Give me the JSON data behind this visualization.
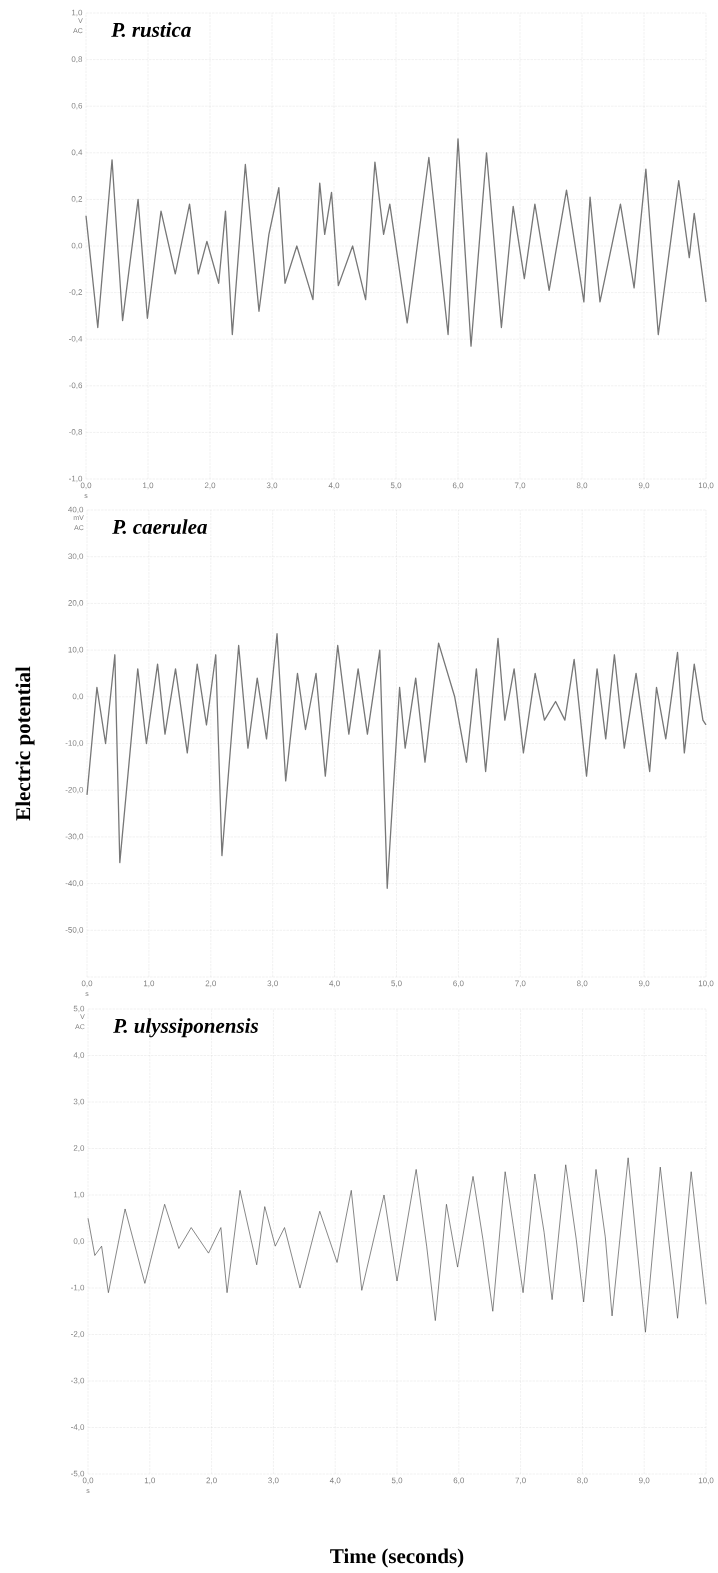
{
  "chart_data": [
    {
      "type": "line",
      "title": "P. rustica",
      "annotations": [
        "V",
        "AC",
        "s"
      ],
      "grid": true,
      "xlim": [
        0,
        10
      ],
      "ylim": [
        -1,
        1
      ],
      "xticks": [
        {
          "value": 0,
          "label": "0,0"
        },
        {
          "value": 1,
          "label": "1,0"
        },
        {
          "value": 2,
          "label": "2,0"
        },
        {
          "value": 3,
          "label": "3,0"
        },
        {
          "value": 4,
          "label": "4,0"
        },
        {
          "value": 5,
          "label": "5,0"
        },
        {
          "value": 6,
          "label": "6,0"
        },
        {
          "value": 7,
          "label": "7,0"
        },
        {
          "value": 8,
          "label": "8,0"
        },
        {
          "value": 9,
          "label": "9,0"
        },
        {
          "value": 10,
          "label": "10,0"
        }
      ],
      "yticks": [
        {
          "value": -1,
          "label": "-1,0"
        },
        {
          "value": -0.8,
          "label": "-0,8"
        },
        {
          "value": -0.6,
          "label": "-0,6"
        },
        {
          "value": -0.4,
          "label": "-0,4"
        },
        {
          "value": -0.2,
          "label": "-0,2"
        },
        {
          "value": 0,
          "label": "0,0"
        },
        {
          "value": 0.2,
          "label": "0,2"
        },
        {
          "value": 0.4,
          "label": "0,4"
        },
        {
          "value": 0.6,
          "label": "0,6"
        },
        {
          "value": 0.8,
          "label": "0,8"
        },
        {
          "value": 1,
          "label": "1,0"
        }
      ],
      "x": [
        0,
        0.19,
        0.42,
        0.59,
        0.84,
        0.99,
        1.21,
        1.44,
        1.67,
        1.81,
        1.95,
        2.14,
        2.25,
        2.36,
        2.57,
        2.79,
        2.95,
        3.11,
        3.21,
        3.4,
        3.66,
        3.77,
        3.85,
        3.96,
        4.07,
        4.3,
        4.51,
        4.66,
        4.8,
        4.9,
        5.18,
        5.53,
        5.84,
        6.0,
        6.21,
        6.46,
        6.7,
        6.89,
        7.07,
        7.24,
        7.47,
        7.75,
        8.03,
        8.13,
        8.29,
        8.62,
        8.84,
        9.03,
        9.23,
        9.56,
        9.73,
        9.81,
        10.0
      ],
      "series": [
        {
          "color": "#777777",
          "values": [
            0.13,
            -0.35,
            0.37,
            -0.32,
            0.2,
            -0.31,
            0.15,
            -0.12,
            0.18,
            -0.12,
            0.02,
            -0.16,
            0.15,
            -0.38,
            0.35,
            -0.28,
            0.05,
            0.25,
            -0.16,
            0.0,
            -0.23,
            0.27,
            0.05,
            0.23,
            -0.17,
            0.0,
            -0.23,
            0.36,
            0.05,
            0.18,
            -0.33,
            0.38,
            -0.38,
            0.46,
            -0.43,
            0.4,
            -0.35,
            0.17,
            -0.14,
            0.18,
            -0.19,
            0.24,
            -0.24,
            0.21,
            -0.24,
            0.18,
            -0.18,
            0.33,
            -0.38,
            0.28,
            -0.05,
            0.14,
            -0.24
          ]
        }
      ]
    },
    {
      "type": "line",
      "title": "P. caerulea",
      "ylabel": "Electric potential",
      "annotations": [
        "mV",
        "AC",
        "s"
      ],
      "grid": true,
      "xlim": [
        0,
        10
      ],
      "ylim": [
        -60,
        40
      ],
      "xticks": [
        {
          "value": 0,
          "label": "0,0"
        },
        {
          "value": 1,
          "label": "1,0"
        },
        {
          "value": 2,
          "label": "2,0"
        },
        {
          "value": 3,
          "label": "3,0"
        },
        {
          "value": 4,
          "label": "4,0"
        },
        {
          "value": 5,
          "label": "5,0"
        },
        {
          "value": 6,
          "label": "6,0"
        },
        {
          "value": 7,
          "label": "7,0"
        },
        {
          "value": 8,
          "label": "8,0"
        },
        {
          "value": 9,
          "label": "9,0"
        },
        {
          "value": 10,
          "label": "10,0"
        }
      ],
      "yticks": [
        {
          "value": -60,
          "label": null
        },
        {
          "value": -50,
          "label": "-50,0"
        },
        {
          "value": -40,
          "label": "-40,0"
        },
        {
          "value": -30,
          "label": "-30,0"
        },
        {
          "value": -20,
          "label": "-20,0"
        },
        {
          "value": -10,
          "label": "-10,0"
        },
        {
          "value": 0,
          "label": "0,0"
        },
        {
          "value": 10,
          "label": "10,0"
        },
        {
          "value": 20,
          "label": "20,0"
        },
        {
          "value": 30,
          "label": "30,0"
        },
        {
          "value": 40,
          "label": "40,0"
        }
      ],
      "x": [
        0,
        0.16,
        0.3,
        0.45,
        0.53,
        0.82,
        0.96,
        1.14,
        1.26,
        1.43,
        1.62,
        1.78,
        1.93,
        2.08,
        2.18,
        2.45,
        2.6,
        2.75,
        2.9,
        3.07,
        3.21,
        3.4,
        3.53,
        3.7,
        3.85,
        4.05,
        4.23,
        4.38,
        4.53,
        4.73,
        4.85,
        5.05,
        5.14,
        5.31,
        5.46,
        5.68,
        5.94,
        6.13,
        6.29,
        6.44,
        6.64,
        6.75,
        6.9,
        7.05,
        7.24,
        7.39,
        7.57,
        7.72,
        7.87,
        8.07,
        8.24,
        8.38,
        8.52,
        8.68,
        8.87,
        9.09,
        9.2,
        9.35,
        9.54,
        9.65,
        9.81,
        9.95,
        10.0
      ],
      "series": [
        {
          "color": "#777777",
          "values": [
            -21,
            2,
            -10,
            9,
            -35.5,
            6,
            -10,
            7,
            -8,
            6,
            -12,
            7,
            -6,
            9,
            -34,
            11,
            -11,
            4,
            -9,
            13.5,
            -18,
            5,
            -7,
            5,
            -17,
            11,
            -8,
            6,
            -8,
            10,
            -41,
            2,
            -11,
            4,
            -14,
            11.5,
            0,
            -14,
            6,
            -16,
            12.5,
            -5,
            6,
            -12,
            5,
            -5,
            -1,
            -5,
            8,
            -17,
            6,
            -9,
            9,
            -11,
            5,
            -16,
            2,
            -9,
            9.5,
            -12,
            7,
            -5,
            -6
          ]
        }
      ]
    },
    {
      "type": "line",
      "title": "P. ulyssiponensis",
      "xlabel": "Time (seconds)",
      "annotations": [
        "V",
        "AC",
        "s"
      ],
      "grid": true,
      "xlim": [
        0,
        10
      ],
      "ylim": [
        -5,
        5
      ],
      "xticks": [
        {
          "value": 0,
          "label": "0,0"
        },
        {
          "value": 1,
          "label": "1,0"
        },
        {
          "value": 2,
          "label": "2,0"
        },
        {
          "value": 3,
          "label": "3,0"
        },
        {
          "value": 4,
          "label": "4,0"
        },
        {
          "value": 5,
          "label": "5,0"
        },
        {
          "value": 6,
          "label": "6,0"
        },
        {
          "value": 7,
          "label": "7,0"
        },
        {
          "value": 8,
          "label": "8,0"
        },
        {
          "value": 9,
          "label": "9,0"
        },
        {
          "value": 10,
          "label": "10,0"
        }
      ],
      "yticks": [
        {
          "value": -5,
          "label": "-5,0"
        },
        {
          "value": -4,
          "label": "-4,0"
        },
        {
          "value": -3,
          "label": "-3,0"
        },
        {
          "value": -2,
          "label": "-2,0"
        },
        {
          "value": -1,
          "label": "-1,0"
        },
        {
          "value": 0,
          "label": "0,0"
        },
        {
          "value": 1,
          "label": "1,0"
        },
        {
          "value": 2,
          "label": "2,0"
        },
        {
          "value": 3,
          "label": "3,0"
        },
        {
          "value": 4,
          "label": "4,0"
        },
        {
          "value": 5,
          "label": "5,0"
        }
      ],
      "x": [
        0,
        0.11,
        0.22,
        0.33,
        0.6,
        0.92,
        1.24,
        1.47,
        1.67,
        1.95,
        2.15,
        2.25,
        2.46,
        2.73,
        2.86,
        3.03,
        3.18,
        3.43,
        3.75,
        4.03,
        4.26,
        4.43,
        4.79,
        5.0,
        5.31,
        5.48,
        5.62,
        5.8,
        5.98,
        6.23,
        6.39,
        6.55,
        6.75,
        6.88,
        7.04,
        7.23,
        7.38,
        7.51,
        7.73,
        7.9,
        8.02,
        8.22,
        8.37,
        8.48,
        8.74,
        9.02,
        9.26,
        9.54,
        9.76,
        10.0
      ],
      "series": [
        {
          "color": "#555555",
          "values": [
            0.5,
            -0.3,
            -0.1,
            -1.1,
            0.7,
            -0.9,
            0.8,
            -0.15,
            0.3,
            -0.25,
            0.3,
            -1.1,
            1.1,
            -0.5,
            0.75,
            -0.1,
            0.3,
            -1.0,
            0.65,
            -0.45,
            1.1,
            -1.05,
            1.0,
            -0.85,
            1.55,
            -0.1,
            -1.7,
            0.8,
            -0.55,
            1.4,
            0.05,
            -1.5,
            1.5,
            0.35,
            -1.1,
            1.45,
            0.2,
            -1.25,
            1.65,
            0.05,
            -1.3,
            1.55,
            0.1,
            -1.6,
            1.8,
            -1.95,
            1.6,
            -1.65,
            1.5,
            -1.35
          ]
        }
      ]
    }
  ]
}
